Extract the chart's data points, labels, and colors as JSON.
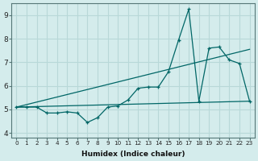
{
  "xlabel": "Humidex (Indice chaleur)",
  "background_color": "#d4ecec",
  "grid_color": "#b8d8d8",
  "line_color": "#006666",
  "xlim": [
    -0.5,
    23.5
  ],
  "ylim": [
    3.8,
    9.5
  ],
  "yticks": [
    4,
    5,
    6,
    7,
    8,
    9
  ],
  "xticks": [
    0,
    1,
    2,
    3,
    4,
    5,
    6,
    7,
    8,
    9,
    10,
    11,
    12,
    13,
    14,
    15,
    16,
    17,
    18,
    19,
    20,
    21,
    22,
    23
  ],
  "line1_x": [
    0,
    1,
    2,
    3,
    4,
    5,
    6,
    7,
    8,
    9,
    10,
    11,
    12,
    13,
    14,
    15,
    16,
    17,
    18,
    19,
    20,
    21,
    22,
    23
  ],
  "line1_y": [
    5.1,
    5.1,
    5.1,
    4.85,
    4.85,
    4.9,
    4.85,
    4.45,
    4.65,
    5.1,
    5.15,
    5.4,
    5.9,
    5.95,
    5.95,
    6.6,
    7.95,
    9.25,
    5.35,
    7.6,
    7.65,
    7.1,
    6.95,
    5.35
  ],
  "line2_x": [
    0,
    23
  ],
  "line2_y": [
    5.1,
    5.35
  ],
  "line3_x": [
    0,
    23
  ],
  "line3_y": [
    5.1,
    7.55
  ]
}
